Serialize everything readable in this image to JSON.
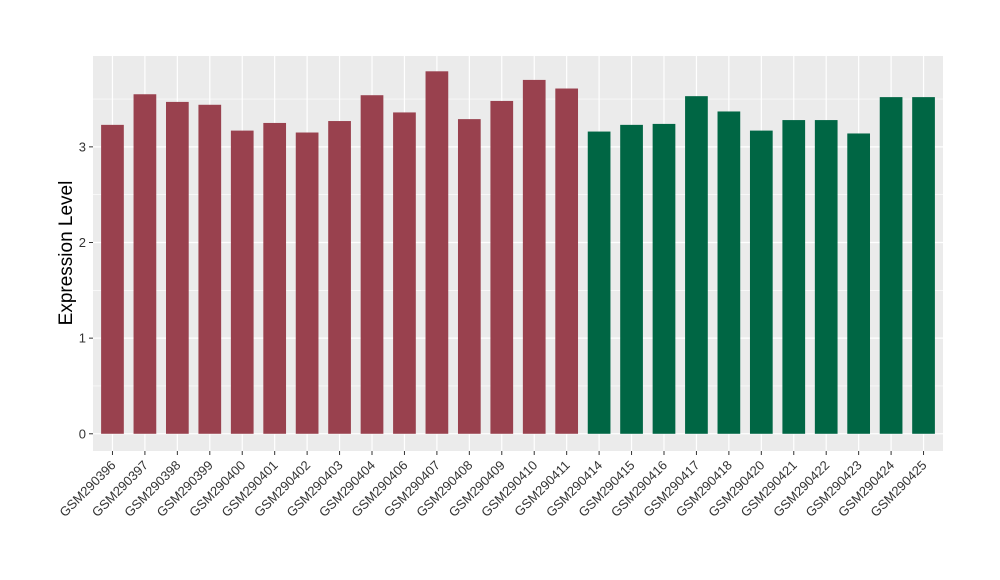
{
  "chart_data": {
    "type": "bar",
    "title": "",
    "xlabel": "",
    "ylabel": "Expression Level",
    "ylim": [
      -0.18,
      3.95
    ],
    "yticks": [
      0,
      1,
      2,
      3
    ],
    "grid": true,
    "panel_background": "#EBEBEB",
    "categories": [
      "GSM290396",
      "GSM290397",
      "GSM290398",
      "GSM290399",
      "GSM290400",
      "GSM290401",
      "GSM290402",
      "GSM290403",
      "GSM290404",
      "GSM290406",
      "GSM290407",
      "GSM290408",
      "GSM290409",
      "GSM290410",
      "GSM290411",
      "GSM290414",
      "GSM290415",
      "GSM290416",
      "GSM290417",
      "GSM290418",
      "GSM290420",
      "GSM290421",
      "GSM290422",
      "GSM290423",
      "GSM290424",
      "GSM290425"
    ],
    "values": [
      3.23,
      3.55,
      3.47,
      3.44,
      3.17,
      3.25,
      3.15,
      3.27,
      3.54,
      3.36,
      3.79,
      3.29,
      3.48,
      3.7,
      3.61,
      3.16,
      3.23,
      3.24,
      3.53,
      3.37,
      3.17,
      3.28,
      3.28,
      3.14,
      3.52,
      3.52
    ],
    "colors": [
      "#99414E",
      "#99414E",
      "#99414E",
      "#99414E",
      "#99414E",
      "#99414E",
      "#99414E",
      "#99414E",
      "#99414E",
      "#99414E",
      "#99414E",
      "#99414E",
      "#99414E",
      "#99414E",
      "#99414E",
      "#006644",
      "#006644",
      "#006644",
      "#006644",
      "#006644",
      "#006644",
      "#006644",
      "#006644",
      "#006644",
      "#006644",
      "#006644"
    ]
  }
}
